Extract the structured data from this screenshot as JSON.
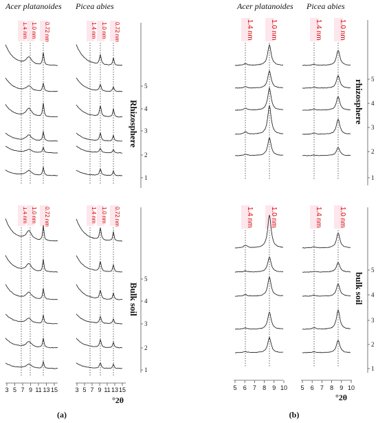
{
  "panels": [
    {
      "label": "(a)",
      "species": [
        "Acer platanoides",
        "Picea abies"
      ],
      "peaks": [
        "1.4 nm",
        "1.0 nm",
        "0.72 nm"
      ],
      "x_ticks": [
        "3",
        "5",
        "7",
        "9",
        "11",
        "13",
        "15"
      ],
      "x_unit": "°2θ",
      "upper_title": "Rhizosphere",
      "lower_title": "Bulk soil",
      "samples": [
        "1",
        "2",
        "3",
        "4",
        "5"
      ]
    },
    {
      "label": "(b)",
      "species": [
        "Acer platanoides",
        "Picea abies"
      ],
      "peaks": [
        "1.4 nm",
        "1.0 nm"
      ],
      "x_ticks": [
        "5",
        "6",
        "7",
        "8",
        "9",
        "10"
      ],
      "x_unit": "°2θ",
      "upper_title": "rhizosphere",
      "lower_title": "bulk soil",
      "samples": [
        "1",
        "2",
        "3",
        "4",
        "5"
      ]
    }
  ]
}
